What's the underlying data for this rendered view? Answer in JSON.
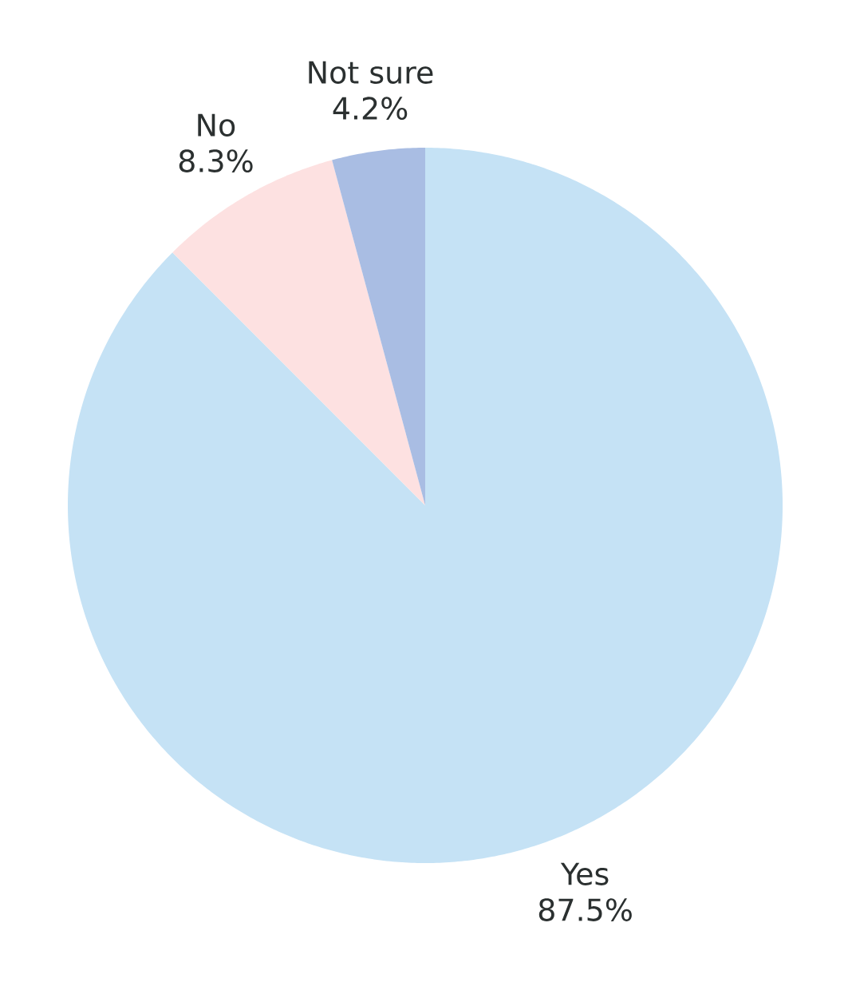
{
  "chart_data": {
    "type": "pie",
    "categories": [
      "Yes",
      "No",
      "Not sure"
    ],
    "values": [
      87.5,
      8.3,
      4.2
    ],
    "colors": [
      "#c5e2f5",
      "#fde1e1",
      "#a9bde3"
    ],
    "value_labels": [
      "87.5%",
      "8.3%",
      "4.2%"
    ]
  }
}
